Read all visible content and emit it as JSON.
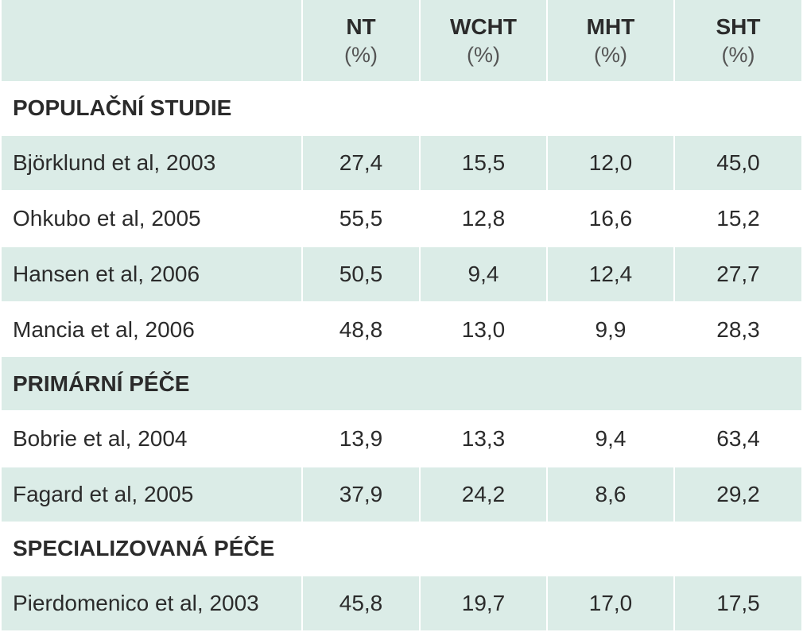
{
  "table": {
    "columns": [
      {
        "name": "NT",
        "unit": "(%)"
      },
      {
        "name": "WCHT",
        "unit": "(%)"
      },
      {
        "name": "MHT",
        "unit": "(%)"
      },
      {
        "name": "SHT",
        "unit": "(%)"
      }
    ],
    "sections": [
      {
        "title": "POPULAČNÍ STUDIE",
        "rows": [
          {
            "study": "Björklund et al, 2003",
            "values": [
              "27,4",
              "15,5",
              "12,0",
              "45,0"
            ]
          },
          {
            "study": "Ohkubo et al, 2005",
            "values": [
              "55,5",
              "12,8",
              "16,6",
              "15,2"
            ]
          },
          {
            "study": "Hansen et al, 2006",
            "values": [
              "50,5",
              "9,4",
              "12,4",
              "27,7"
            ]
          },
          {
            "study": "Mancia et al, 2006",
            "values": [
              "48,8",
              "13,0",
              "9,9",
              "28,3"
            ]
          }
        ]
      },
      {
        "title": "PRIMÁRNÍ PÉČE",
        "rows": [
          {
            "study": "Bobrie et al, 2004",
            "values": [
              "13,9",
              "13,3",
              "9,4",
              "63,4"
            ]
          },
          {
            "study": "Fagard et al, 2005",
            "values": [
              "37,9",
              "24,2",
              "8,6",
              "29,2"
            ]
          }
        ]
      },
      {
        "title": "SPECIALIZOVANÁ PÉČE",
        "rows": [
          {
            "study": "Pierdomenico et al, 2003",
            "values": [
              "45,8",
              "19,7",
              "17,0",
              "17,5"
            ]
          }
        ]
      }
    ]
  }
}
